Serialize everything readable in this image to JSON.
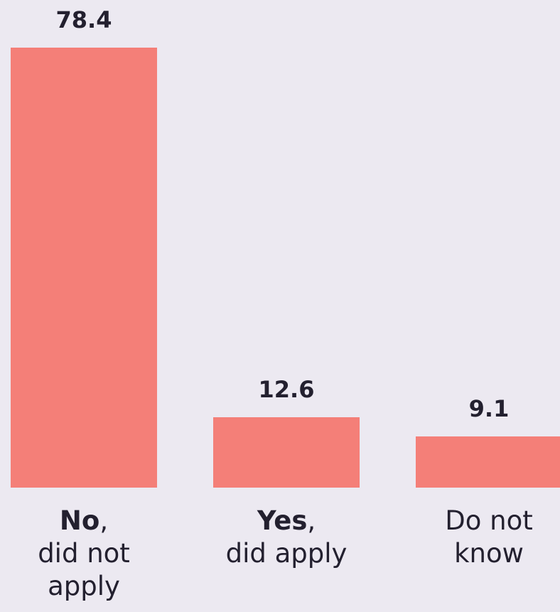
{
  "chart_data": {
    "type": "bar",
    "categories": [
      {
        "bold": "No",
        "punct": ",",
        "text": "did not apply"
      },
      {
        "bold": "Yes",
        "punct": ",",
        "text": "did apply"
      },
      {
        "text": "Do not know"
      }
    ],
    "values": [
      78.4,
      12.6,
      9.1
    ],
    "color": "#f47f78"
  }
}
